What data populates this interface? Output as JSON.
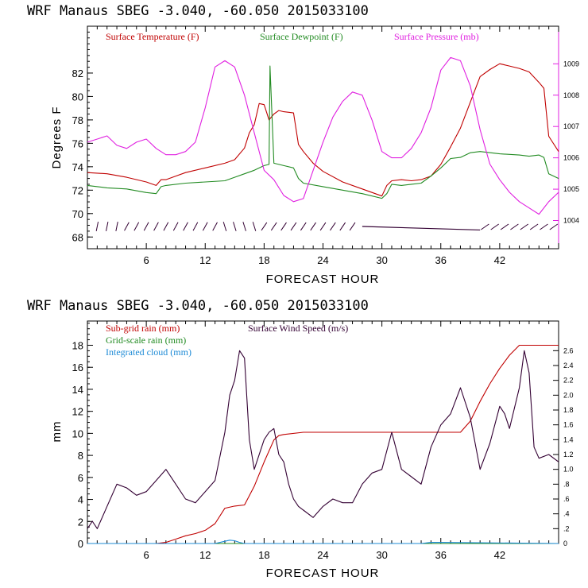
{
  "chart_data": [
    {
      "type": "line",
      "title": "WRF   Manaus SBEG   -3.040, -60.050  2015033100",
      "xlabel": "FORECAST HOUR",
      "ylabel": "Degrees F",
      "xlim": [
        0,
        48
      ],
      "ylim": [
        67,
        86
      ],
      "y2lim": [
        1003.1,
        1010.2
      ],
      "xticks": [
        "6",
        "12",
        "18",
        "24",
        "30",
        "36",
        "42"
      ],
      "yticks": [
        "68",
        "70",
        "72",
        "74",
        "76",
        "78",
        "80",
        "82"
      ],
      "y2ticks": [
        "1004",
        "1005",
        "1006",
        "1007",
        "1008",
        "1009"
      ],
      "colors": {
        "temp": "#c00000",
        "dew": "#228b22",
        "pres": "#e020e0",
        "wind": "#330033"
      },
      "legend": [
        "Surface Temperature (F)",
        "Surface Dewpoint (F)",
        "Surface Pressure (mb)"
      ],
      "series": [
        {
          "name": "Surface Temperature (F)",
          "axis": "left",
          "color": "#c00000",
          "x": [
            0,
            2,
            4,
            6,
            7,
            7.5,
            8,
            9,
            10,
            12,
            14,
            15,
            16,
            16.5,
            17,
            17.5,
            18,
            18.5,
            19,
            19.5,
            20,
            21,
            21.5,
            22,
            23,
            24,
            26,
            28,
            30,
            30.5,
            31,
            32,
            33,
            34,
            35,
            36,
            37,
            38,
            39,
            40,
            41,
            42,
            43,
            44,
            45,
            46,
            46.5,
            47,
            48
          ],
          "values": [
            73.5,
            73.4,
            73.1,
            72.7,
            72.4,
            72.9,
            72.9,
            73.2,
            73.5,
            73.9,
            74.3,
            74.6,
            75.6,
            76.9,
            77.6,
            79.4,
            79.3,
            78.0,
            78.5,
            78.8,
            78.7,
            78.6,
            75.9,
            75.3,
            74.3,
            73.6,
            72.7,
            72.1,
            71.5,
            72.4,
            72.8,
            72.9,
            72.8,
            72.9,
            73.2,
            74.2,
            75.7,
            77.3,
            79.5,
            81.7,
            82.3,
            82.8,
            82.6,
            82.4,
            82.1,
            81.2,
            80.7,
            76.6,
            75.3
          ]
        },
        {
          "name": "Surface Dewpoint (F)",
          "axis": "left",
          "color": "#228b22",
          "x": [
            0,
            2,
            4,
            6,
            7,
            7.5,
            8,
            10,
            12,
            14,
            15,
            16,
            17,
            18,
            18.5,
            18.6,
            19,
            20,
            21,
            21.5,
            22,
            24,
            26,
            28,
            30,
            30.5,
            31,
            32,
            33,
            34,
            35,
            36,
            37,
            38,
            39,
            40,
            42,
            44,
            45,
            46,
            46.5,
            47,
            48
          ],
          "values": [
            72.4,
            72.2,
            72.1,
            71.8,
            71.7,
            72.3,
            72.4,
            72.6,
            72.7,
            72.8,
            73.1,
            73.4,
            73.7,
            74.1,
            74.2,
            82.6,
            74.3,
            74.1,
            73.9,
            73.0,
            72.6,
            72.3,
            72.0,
            71.7,
            71.3,
            71.7,
            72.5,
            72.4,
            72.5,
            72.6,
            73.2,
            73.9,
            74.7,
            74.8,
            75.2,
            75.3,
            75.1,
            75.0,
            74.9,
            75.0,
            74.8,
            73.4,
            73.0
          ]
        },
        {
          "name": "Surface Pressure (mb)",
          "axis": "right",
          "color": "#e020e0",
          "x": [
            0,
            1,
            2,
            3,
            4,
            5,
            6,
            7,
            8,
            9,
            10,
            11,
            12,
            13,
            14,
            15,
            16,
            17,
            18,
            19,
            20,
            21,
            22,
            23,
            24,
            25,
            26,
            27,
            28,
            29,
            30,
            31,
            32,
            33,
            34,
            35,
            36,
            37,
            38,
            39,
            40,
            41,
            42,
            43,
            44,
            45,
            46,
            47,
            48
          ],
          "values": [
            1006.5,
            1006.6,
            1006.7,
            1006.4,
            1006.3,
            1006.5,
            1006.6,
            1006.3,
            1006.1,
            1006.1,
            1006.2,
            1006.5,
            1007.6,
            1008.9,
            1009.1,
            1008.9,
            1008.0,
            1006.8,
            1005.6,
            1005.3,
            1004.8,
            1004.6,
            1004.7,
            1005.6,
            1006.5,
            1007.3,
            1007.8,
            1008.1,
            1008.0,
            1007.2,
            1006.2,
            1006.0,
            1006.0,
            1006.3,
            1006.8,
            1007.6,
            1008.8,
            1009.2,
            1009.1,
            1008.3,
            1006.9,
            1005.8,
            1005.3,
            1004.9,
            1004.6,
            1004.4,
            1004.2,
            1004.6,
            1004.9
          ]
        }
      ]
    },
    {
      "type": "line",
      "title": "WRF   Manaus SBEG   -3.040, -60.050  2015033100",
      "xlabel": "FORECAST HOUR",
      "ylabel": "mm",
      "xlim": [
        0,
        48
      ],
      "ylim": [
        0,
        20.2
      ],
      "y2lim": [
        0,
        3.0
      ],
      "xticks": [
        "6",
        "12",
        "18",
        "24",
        "30",
        "36",
        "42"
      ],
      "yticks": [
        "0",
        "2",
        "4",
        "6",
        "8",
        "10",
        "12",
        "14",
        "16",
        "18"
      ],
      "y2ticks": [
        "0",
        ".2",
        ".4",
        ".6",
        ".8",
        "1.0",
        "1.2",
        "1.4",
        "1.6",
        "1.8",
        "2.0",
        "2.2",
        "2.4",
        "2.6"
      ],
      "colors": {
        "subgrid": "#c00000",
        "wind": "#330033",
        "gridscale": "#228b22",
        "cloud": "#1e8bd6"
      },
      "legend": [
        "Sub-grid rain (mm)",
        "Surface Wind Speed (m/s)",
        "Grid-scale rain (mm)",
        "Integrated cloud (mm)"
      ],
      "series": [
        {
          "name": "Sub-grid rain (mm)",
          "axis": "left",
          "color": "#c00000",
          "x": [
            0,
            7,
            8,
            9,
            10,
            11,
            12,
            13,
            14,
            15,
            16,
            17,
            18,
            19,
            19.5,
            20,
            22,
            24,
            26,
            28,
            30,
            32,
            34,
            36,
            38,
            39,
            40,
            41,
            42,
            43,
            44,
            44.5,
            48
          ],
          "values": [
            0,
            0,
            0.1,
            0.4,
            0.7,
            0.9,
            1.2,
            1.8,
            3.2,
            3.4,
            3.5,
            5.2,
            7.4,
            9.4,
            9.8,
            9.9,
            10.1,
            10.1,
            10.1,
            10.1,
            10.1,
            10.1,
            10.1,
            10.1,
            10.1,
            11.1,
            12.9,
            14.5,
            15.9,
            17.1,
            18.0,
            18.0,
            18.0
          ]
        },
        {
          "name": "Surface Wind Speed (m/s)",
          "axis": "right",
          "color": "#330033",
          "x": [
            0,
            0.5,
            1,
            2,
            3,
            4,
            5,
            6,
            7,
            8,
            9,
            10,
            11,
            12,
            13,
            14,
            14.5,
            15,
            15.5,
            16,
            16.5,
            17,
            18,
            18.5,
            19,
            19.5,
            20,
            20.5,
            21,
            21.5,
            22,
            23,
            24,
            25,
            26,
            27,
            28,
            29,
            30,
            31,
            32,
            33,
            34,
            35,
            36,
            37,
            38,
            39,
            40,
            41,
            42,
            42.5,
            43,
            44,
            44.5,
            45,
            45.5,
            46,
            47,
            48
          ],
          "values": [
            0.2,
            0.3,
            0.2,
            0.5,
            0.8,
            0.75,
            0.65,
            0.7,
            0.85,
            1.0,
            0.8,
            0.6,
            0.55,
            0.7,
            0.85,
            1.5,
            2.0,
            2.2,
            2.6,
            2.5,
            1.4,
            1.0,
            1.4,
            1.5,
            1.55,
            1.2,
            1.1,
            0.8,
            0.6,
            0.5,
            0.45,
            0.35,
            0.5,
            0.6,
            0.55,
            0.55,
            0.8,
            0.95,
            1.0,
            1.5,
            1.0,
            0.9,
            0.8,
            1.3,
            1.6,
            1.75,
            2.1,
            1.7,
            1.0,
            1.35,
            1.85,
            1.75,
            1.55,
            2.1,
            2.6,
            2.3,
            1.3,
            1.15,
            1.2,
            1.1
          ]
        },
        {
          "name": "Grid-scale rain (mm)",
          "axis": "left",
          "color": "#228b22",
          "x": [
            0,
            48
          ],
          "values": [
            0,
            0
          ]
        },
        {
          "name": "Integrated cloud (mm)",
          "axis": "left",
          "color": "#1e8bd6",
          "x": [
            0,
            13,
            14,
            14.5,
            15,
            15.5,
            16,
            34,
            35,
            36,
            48
          ],
          "values": [
            0,
            0,
            0.2,
            0.3,
            0.25,
            0.1,
            0,
            0,
            0.1,
            0.1,
            0
          ]
        }
      ]
    }
  ]
}
